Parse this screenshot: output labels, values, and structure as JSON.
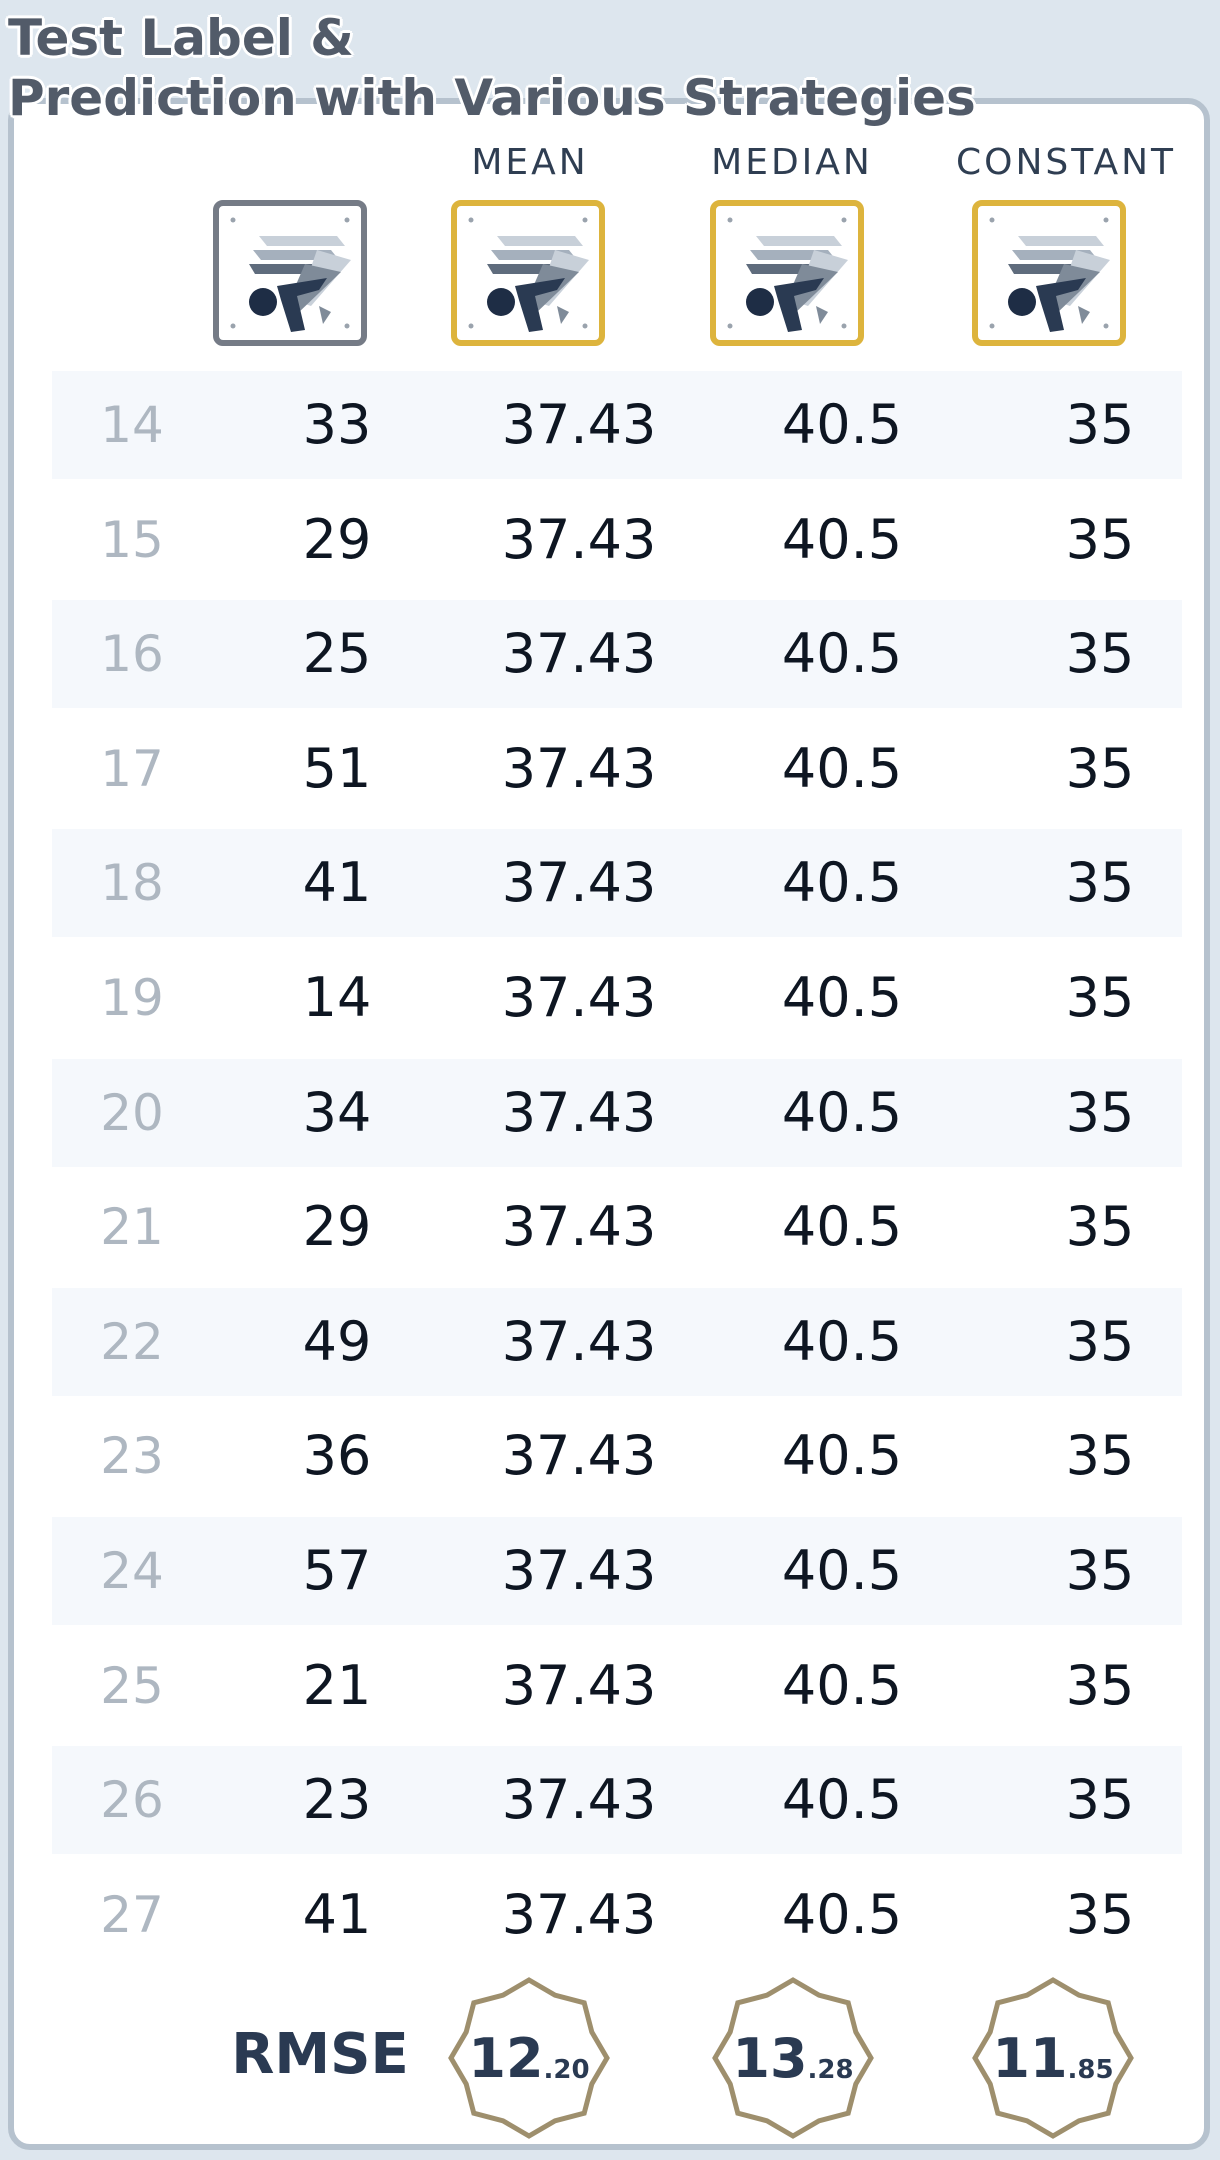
{
  "title": {
    "line1": "Test Label &",
    "line2": "Prediction with Various Strategies"
  },
  "columns": [
    "MEAN",
    "MEDIAN",
    "CONSTANT"
  ],
  "icons": {
    "label": "regression-icon",
    "strategy": "regression-icon"
  },
  "colors": {
    "label_border": "#757b86",
    "strategy_border": "#ddb43d",
    "badge_border": "#9e8f6d"
  },
  "rows": [
    {
      "index": "14",
      "label": "33",
      "mean": "37.43",
      "median": "40.5",
      "constant": "35"
    },
    {
      "index": "15",
      "label": "29",
      "mean": "37.43",
      "median": "40.5",
      "constant": "35"
    },
    {
      "index": "16",
      "label": "25",
      "mean": "37.43",
      "median": "40.5",
      "constant": "35"
    },
    {
      "index": "17",
      "label": "51",
      "mean": "37.43",
      "median": "40.5",
      "constant": "35"
    },
    {
      "index": "18",
      "label": "41",
      "mean": "37.43",
      "median": "40.5",
      "constant": "35"
    },
    {
      "index": "19",
      "label": "14",
      "mean": "37.43",
      "median": "40.5",
      "constant": "35"
    },
    {
      "index": "20",
      "label": "34",
      "mean": "37.43",
      "median": "40.5",
      "constant": "35"
    },
    {
      "index": "21",
      "label": "29",
      "mean": "37.43",
      "median": "40.5",
      "constant": "35"
    },
    {
      "index": "22",
      "label": "49",
      "mean": "37.43",
      "median": "40.5",
      "constant": "35"
    },
    {
      "index": "23",
      "label": "36",
      "mean": "37.43",
      "median": "40.5",
      "constant": "35"
    },
    {
      "index": "24",
      "label": "57",
      "mean": "37.43",
      "median": "40.5",
      "constant": "35"
    },
    {
      "index": "25",
      "label": "21",
      "mean": "37.43",
      "median": "40.5",
      "constant": "35"
    },
    {
      "index": "26",
      "label": "23",
      "mean": "37.43",
      "median": "40.5",
      "constant": "35"
    },
    {
      "index": "27",
      "label": "41",
      "mean": "37.43",
      "median": "40.5",
      "constant": "35"
    }
  ],
  "rmse": {
    "label": "RMSE",
    "mean": {
      "int": "12",
      "dec": ".20"
    },
    "median": {
      "int": "13",
      "dec": ".28"
    },
    "constant": {
      "int": "11",
      "dec": ".85"
    }
  }
}
